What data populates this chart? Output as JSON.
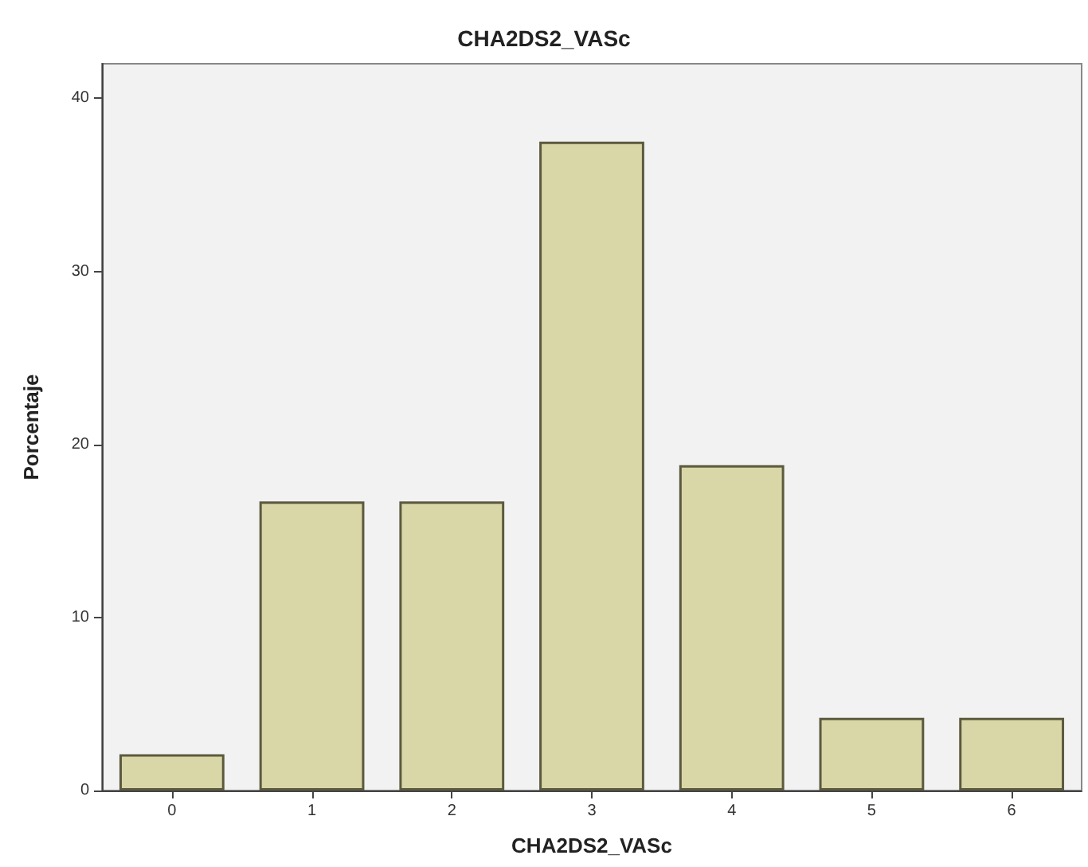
{
  "chart_data": {
    "type": "bar",
    "title": "CHA2DS2_VASc",
    "xlabel": "CHA2DS2_VASc",
    "ylabel": "Porcentaje",
    "categories": [
      "0",
      "1",
      "2",
      "3",
      "4",
      "5",
      "6"
    ],
    "values": [
      2.1,
      16.7,
      16.7,
      37.5,
      18.8,
      4.2,
      4.2
    ],
    "color": "#d9d6a7",
    "ylim": [
      0,
      42
    ],
    "yticks": [
      0,
      10,
      20,
      30,
      40
    ],
    "grid": false
  }
}
